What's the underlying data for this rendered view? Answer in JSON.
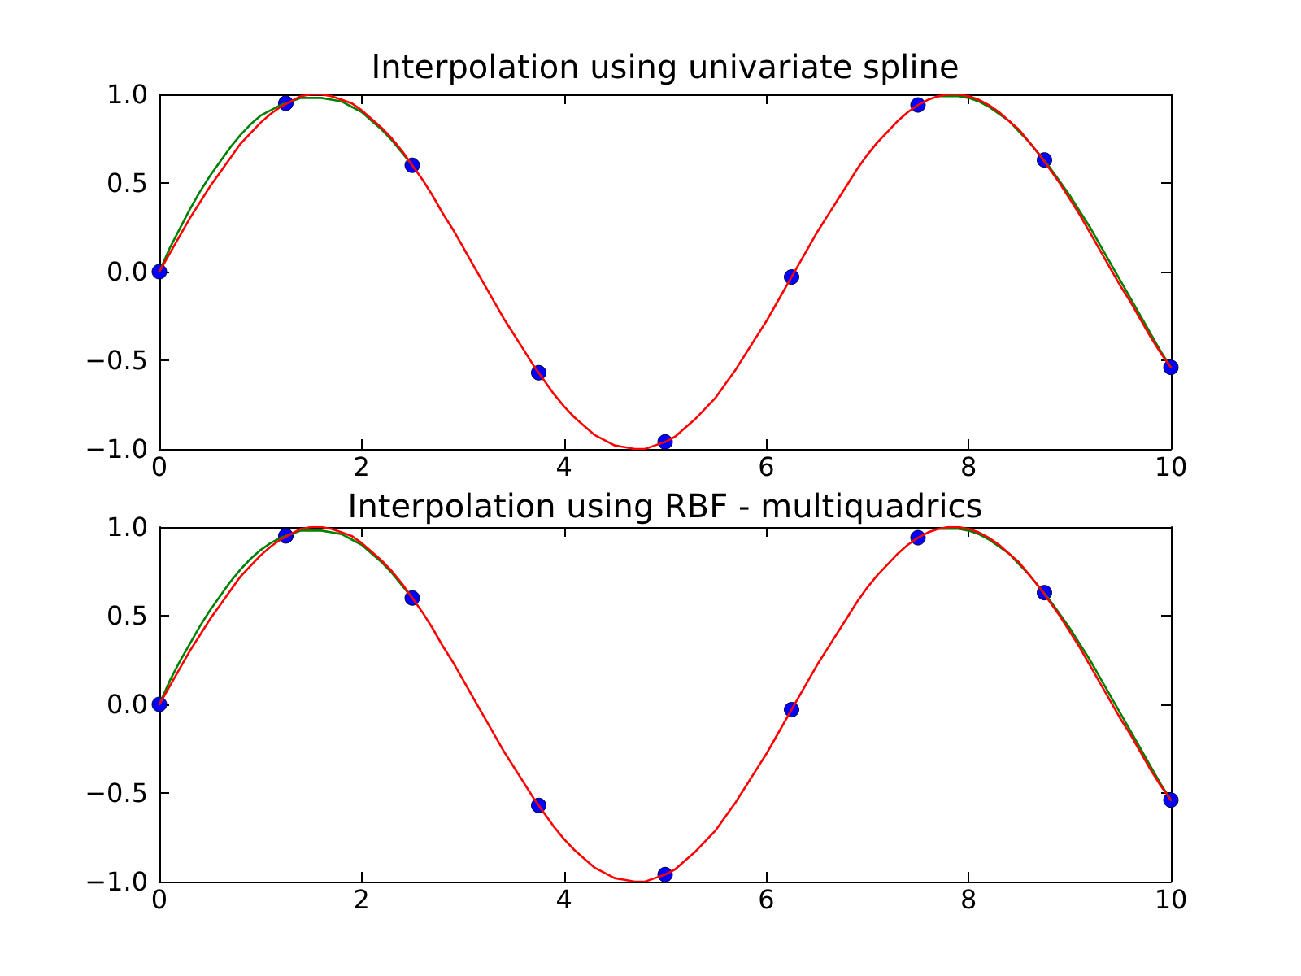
{
  "chart_data": [
    {
      "type": "line",
      "title": "Interpolation using univariate spline",
      "x": [
        0,
        0.1,
        0.2,
        0.3,
        0.4,
        0.5,
        0.6,
        0.7,
        0.8,
        0.9,
        1,
        1.1,
        1.2,
        1.3,
        1.4,
        1.5,
        1.6,
        1.7,
        1.8,
        1.9,
        2,
        2.1,
        2.2,
        2.3,
        2.4,
        2.5,
        2.6,
        2.7,
        2.8,
        2.9,
        3,
        3.1,
        3.2,
        3.3,
        3.4,
        3.5,
        3.6,
        3.7,
        3.8,
        3.9,
        4,
        4.1,
        4.2,
        4.3,
        4.4,
        4.5,
        4.6,
        4.7,
        4.8,
        4.9,
        5,
        5.1,
        5.2,
        5.3,
        5.4,
        5.5,
        5.6,
        5.7,
        5.8,
        5.9,
        6,
        6.1,
        6.2,
        6.3,
        6.4,
        6.5,
        6.6,
        6.7,
        6.8,
        6.9,
        7,
        7.1,
        7.2,
        7.3,
        7.4,
        7.5,
        7.6,
        7.7,
        7.8,
        7.9,
        8,
        8.1,
        8.2,
        8.3,
        8.4,
        8.5,
        8.6,
        8.7,
        8.8,
        8.9,
        9,
        9.1,
        9.2,
        9.3,
        9.4,
        9.5,
        9.6,
        9.7,
        9.8,
        9.9,
        10
      ],
      "series": [
        {
          "type": "scatter",
          "color": "#0000ff",
          "marker": "circle",
          "x": [
            0,
            1.25,
            2.5,
            3.75,
            5,
            6.25,
            7.5,
            8.75,
            10
          ],
          "values": [
            0,
            0.95,
            0.6,
            -0.57,
            -0.96,
            -0.03,
            0.94,
            0.63,
            -0.54
          ]
        },
        {
          "color": "#008000",
          "values": [
            0,
            0.13,
            0.24,
            0.35,
            0.45,
            0.54,
            0.62,
            0.7,
            0.77,
            0.83,
            0.88,
            0.91,
            0.94,
            0.96,
            0.98,
            0.98,
            0.98,
            0.97,
            0.96,
            0.93,
            0.9,
            0.85,
            0.8,
            0.74,
            0.67,
            0.6,
            null,
            null,
            null,
            null,
            null,
            null,
            null,
            null,
            null,
            null,
            null,
            null,
            null,
            null,
            null,
            null,
            null,
            null,
            null,
            null,
            null,
            null,
            null,
            null,
            null,
            null,
            null,
            null,
            null,
            null,
            null,
            null,
            null,
            null,
            null,
            null,
            null,
            null,
            null,
            null,
            null,
            null,
            null,
            null,
            null,
            null,
            null,
            null,
            null,
            null,
            null,
            0.99,
            0.99,
            0.99,
            0.98,
            0.96,
            0.93,
            0.89,
            0.85,
            0.79,
            0.73,
            0.66,
            0.59,
            0.51,
            0.43,
            0.34,
            0.25,
            0.15,
            0.05,
            -0.05,
            -0.15,
            -0.25,
            -0.35,
            -0.45,
            -0.54
          ]
        },
        {
          "color": "#ff0000",
          "values": [
            0,
            0.1,
            0.2,
            0.3,
            0.39,
            0.48,
            0.56,
            0.64,
            0.72,
            0.78,
            0.84,
            0.89,
            0.93,
            0.96,
            0.99,
            1,
            1,
            0.99,
            0.97,
            0.95,
            0.91,
            0.86,
            0.81,
            0.75,
            0.68,
            0.6,
            0.52,
            0.43,
            0.33,
            0.24,
            0.14,
            0.04,
            -0.06,
            -0.16,
            -0.26,
            -0.35,
            -0.44,
            -0.53,
            -0.61,
            -0.69,
            -0.76,
            -0.82,
            -0.87,
            -0.92,
            -0.95,
            -0.98,
            -0.99,
            -1,
            -1,
            -0.98,
            -0.96,
            -0.93,
            -0.88,
            -0.83,
            -0.77,
            -0.71,
            -0.63,
            -0.55,
            -0.46,
            -0.37,
            -0.28,
            -0.18,
            -0.08,
            0.02,
            0.12,
            0.22,
            0.31,
            0.4,
            0.49,
            0.58,
            0.66,
            0.73,
            0.79,
            0.85,
            0.9,
            0.94,
            0.97,
            0.99,
            1,
            1,
            0.99,
            0.97,
            0.94,
            0.9,
            0.85,
            0.8,
            0.73,
            0.66,
            0.58,
            0.5,
            0.41,
            0.32,
            0.22,
            0.12,
            0.02,
            -0.08,
            -0.17,
            -0.27,
            -0.37,
            -0.46,
            -0.54
          ]
        }
      ],
      "marker": "none",
      "line_style": "solid",
      "xlim": [
        0,
        10
      ],
      "xticks": [
        0,
        2,
        4,
        6,
        8,
        10
      ],
      "ylim": [
        -1,
        1
      ],
      "yticks": [
        {
          "value": -1,
          "label": "−1.0"
        },
        {
          "value": -0.5,
          "label": "−0.5"
        },
        {
          "value": 0,
          "label": "0.0"
        },
        0.5,
        {
          "value": 1,
          "label": "1.0"
        }
      ]
    },
    {
      "type": "line",
      "title": "Interpolation using RBF - multiquadrics",
      "x": [
        0,
        0.1,
        0.2,
        0.3,
        0.4,
        0.5,
        0.6,
        0.7,
        0.8,
        0.9,
        1,
        1.1,
        1.2,
        1.3,
        1.4,
        1.5,
        1.6,
        1.7,
        1.8,
        1.9,
        2,
        2.1,
        2.2,
        2.3,
        2.4,
        2.5,
        2.6,
        2.7,
        2.8,
        2.9,
        3,
        3.1,
        3.2,
        3.3,
        3.4,
        3.5,
        3.6,
        3.7,
        3.8,
        3.9,
        4,
        4.1,
        4.2,
        4.3,
        4.4,
        4.5,
        4.6,
        4.7,
        4.8,
        4.9,
        5,
        5.1,
        5.2,
        5.3,
        5.4,
        5.5,
        5.6,
        5.7,
        5.8,
        5.9,
        6,
        6.1,
        6.2,
        6.3,
        6.4,
        6.5,
        6.6,
        6.7,
        6.8,
        6.9,
        7,
        7.1,
        7.2,
        7.3,
        7.4,
        7.5,
        7.6,
        7.7,
        7.8,
        7.9,
        8,
        8.1,
        8.2,
        8.3,
        8.4,
        8.5,
        8.6,
        8.7,
        8.8,
        8.9,
        9,
        9.1,
        9.2,
        9.3,
        9.4,
        9.5,
        9.6,
        9.7,
        9.8,
        9.9,
        10
      ],
      "series": [
        {
          "type": "scatter",
          "color": "#0000ff",
          "marker": "circle",
          "x": [
            0,
            1.25,
            2.5,
            3.75,
            5,
            6.25,
            7.5,
            8.75,
            10
          ],
          "values": [
            0,
            0.95,
            0.6,
            -0.57,
            -0.96,
            -0.03,
            0.94,
            0.63,
            -0.54
          ]
        },
        {
          "color": "#008000",
          "values": [
            0,
            0.13,
            0.24,
            0.34,
            0.44,
            0.53,
            0.61,
            0.69,
            0.76,
            0.82,
            0.87,
            0.91,
            0.94,
            0.96,
            0.98,
            0.98,
            0.98,
            0.97,
            0.96,
            0.93,
            0.9,
            0.85,
            0.8,
            0.74,
            0.67,
            0.6,
            null,
            null,
            null,
            null,
            null,
            null,
            null,
            null,
            null,
            null,
            null,
            null,
            null,
            null,
            null,
            null,
            null,
            null,
            null,
            null,
            null,
            null,
            null,
            null,
            null,
            null,
            null,
            null,
            null,
            null,
            null,
            null,
            null,
            null,
            null,
            null,
            null,
            null,
            null,
            null,
            null,
            null,
            null,
            null,
            null,
            null,
            null,
            null,
            null,
            null,
            null,
            0.99,
            0.99,
            0.99,
            0.98,
            0.96,
            0.93,
            0.89,
            0.85,
            0.79,
            0.73,
            0.66,
            0.59,
            0.51,
            0.43,
            0.34,
            0.25,
            0.15,
            0.05,
            -0.05,
            -0.15,
            -0.25,
            -0.35,
            -0.45,
            -0.54
          ]
        },
        {
          "color": "#ff0000",
          "values": [
            0,
            0.1,
            0.2,
            0.3,
            0.39,
            0.48,
            0.56,
            0.64,
            0.72,
            0.78,
            0.84,
            0.89,
            0.93,
            0.96,
            0.99,
            1,
            1,
            0.99,
            0.97,
            0.95,
            0.91,
            0.86,
            0.81,
            0.75,
            0.68,
            0.6,
            0.52,
            0.43,
            0.33,
            0.24,
            0.14,
            0.04,
            -0.06,
            -0.16,
            -0.26,
            -0.35,
            -0.44,
            -0.53,
            -0.61,
            -0.69,
            -0.76,
            -0.82,
            -0.87,
            -0.92,
            -0.95,
            -0.98,
            -0.99,
            -1,
            -1,
            -0.98,
            -0.96,
            -0.93,
            -0.88,
            -0.83,
            -0.77,
            -0.71,
            -0.63,
            -0.55,
            -0.46,
            -0.37,
            -0.28,
            -0.18,
            -0.08,
            0.02,
            0.12,
            0.22,
            0.31,
            0.4,
            0.49,
            0.58,
            0.66,
            0.73,
            0.79,
            0.85,
            0.9,
            0.94,
            0.97,
            0.99,
            1,
            1,
            0.99,
            0.97,
            0.94,
            0.9,
            0.85,
            0.8,
            0.73,
            0.66,
            0.58,
            0.5,
            0.41,
            0.32,
            0.22,
            0.12,
            0.02,
            -0.08,
            -0.17,
            -0.27,
            -0.37,
            -0.46,
            -0.54
          ]
        }
      ],
      "marker": "none",
      "line_style": "solid",
      "xlim": [
        0,
        10
      ],
      "xticks": [
        0,
        2,
        4,
        6,
        8,
        10
      ],
      "ylim": [
        -1,
        1
      ],
      "yticks": [
        {
          "value": -1,
          "label": "−1.0"
        },
        {
          "value": -0.5,
          "label": "−0.5"
        },
        {
          "value": 0,
          "label": "0.0"
        },
        0.5,
        {
          "value": 1,
          "label": "1.0"
        }
      ]
    }
  ]
}
